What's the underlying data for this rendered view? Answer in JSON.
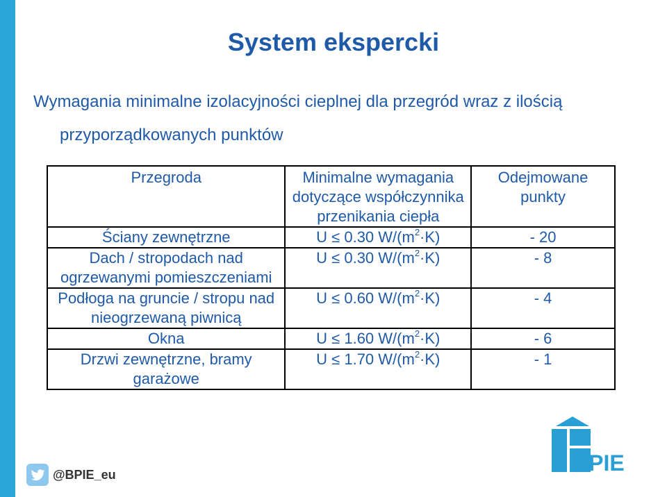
{
  "title": "System ekspercki",
  "subtitle": {
    "line1": "Wymagania minimalne izolacyjności cieplnej dla przegród wraz z ilością",
    "line2": "przyporządkowanych punktów"
  },
  "table": {
    "headers": {
      "col1": "Przegroda",
      "col2": "Minimalne wymagania dotyczące współczynnika przenikania ciepła",
      "col3": "Odejmowane punkty"
    },
    "rows": [
      {
        "partition": "Ściany zewnętrzne",
        "u_prefix": "U ≤ 0.30 W/(m",
        "u_sup": "2",
        "u_suffix": "·K)",
        "points": "- 20"
      },
      {
        "partition": "Dach / stropodach nad ogrzewanymi pomieszczeniami",
        "u_prefix": "U ≤ 0.30 W/(m",
        "u_sup": "2",
        "u_suffix": "·K)",
        "points": "- 8"
      },
      {
        "partition": "Podłoga na gruncie / stropu nad nieogrzewaną piwnicą",
        "u_prefix": "U ≤ 0.60 W/(m",
        "u_sup": "2",
        "u_suffix": "·K)",
        "points": "- 4"
      },
      {
        "partition": "Okna",
        "u_prefix": "U ≤ 1.60 W/(m",
        "u_sup": "2",
        "u_suffix": "·K)",
        "points": "- 6"
      },
      {
        "partition": "Drzwi zewnętrzne, bramy garażowe",
        "u_prefix": "U ≤ 1.70 W/(m",
        "u_sup": "2",
        "u_suffix": "·K)",
        "points": "- 1"
      }
    ]
  },
  "footer": {
    "twitter_icon": "twitter-bird-icon",
    "handle": "@BPIE_eu",
    "logo_text": "BPIE"
  },
  "colors": {
    "accent": "#2aa6d9",
    "text": "#1f5aa8",
    "logo": "#2a9fd6"
  }
}
